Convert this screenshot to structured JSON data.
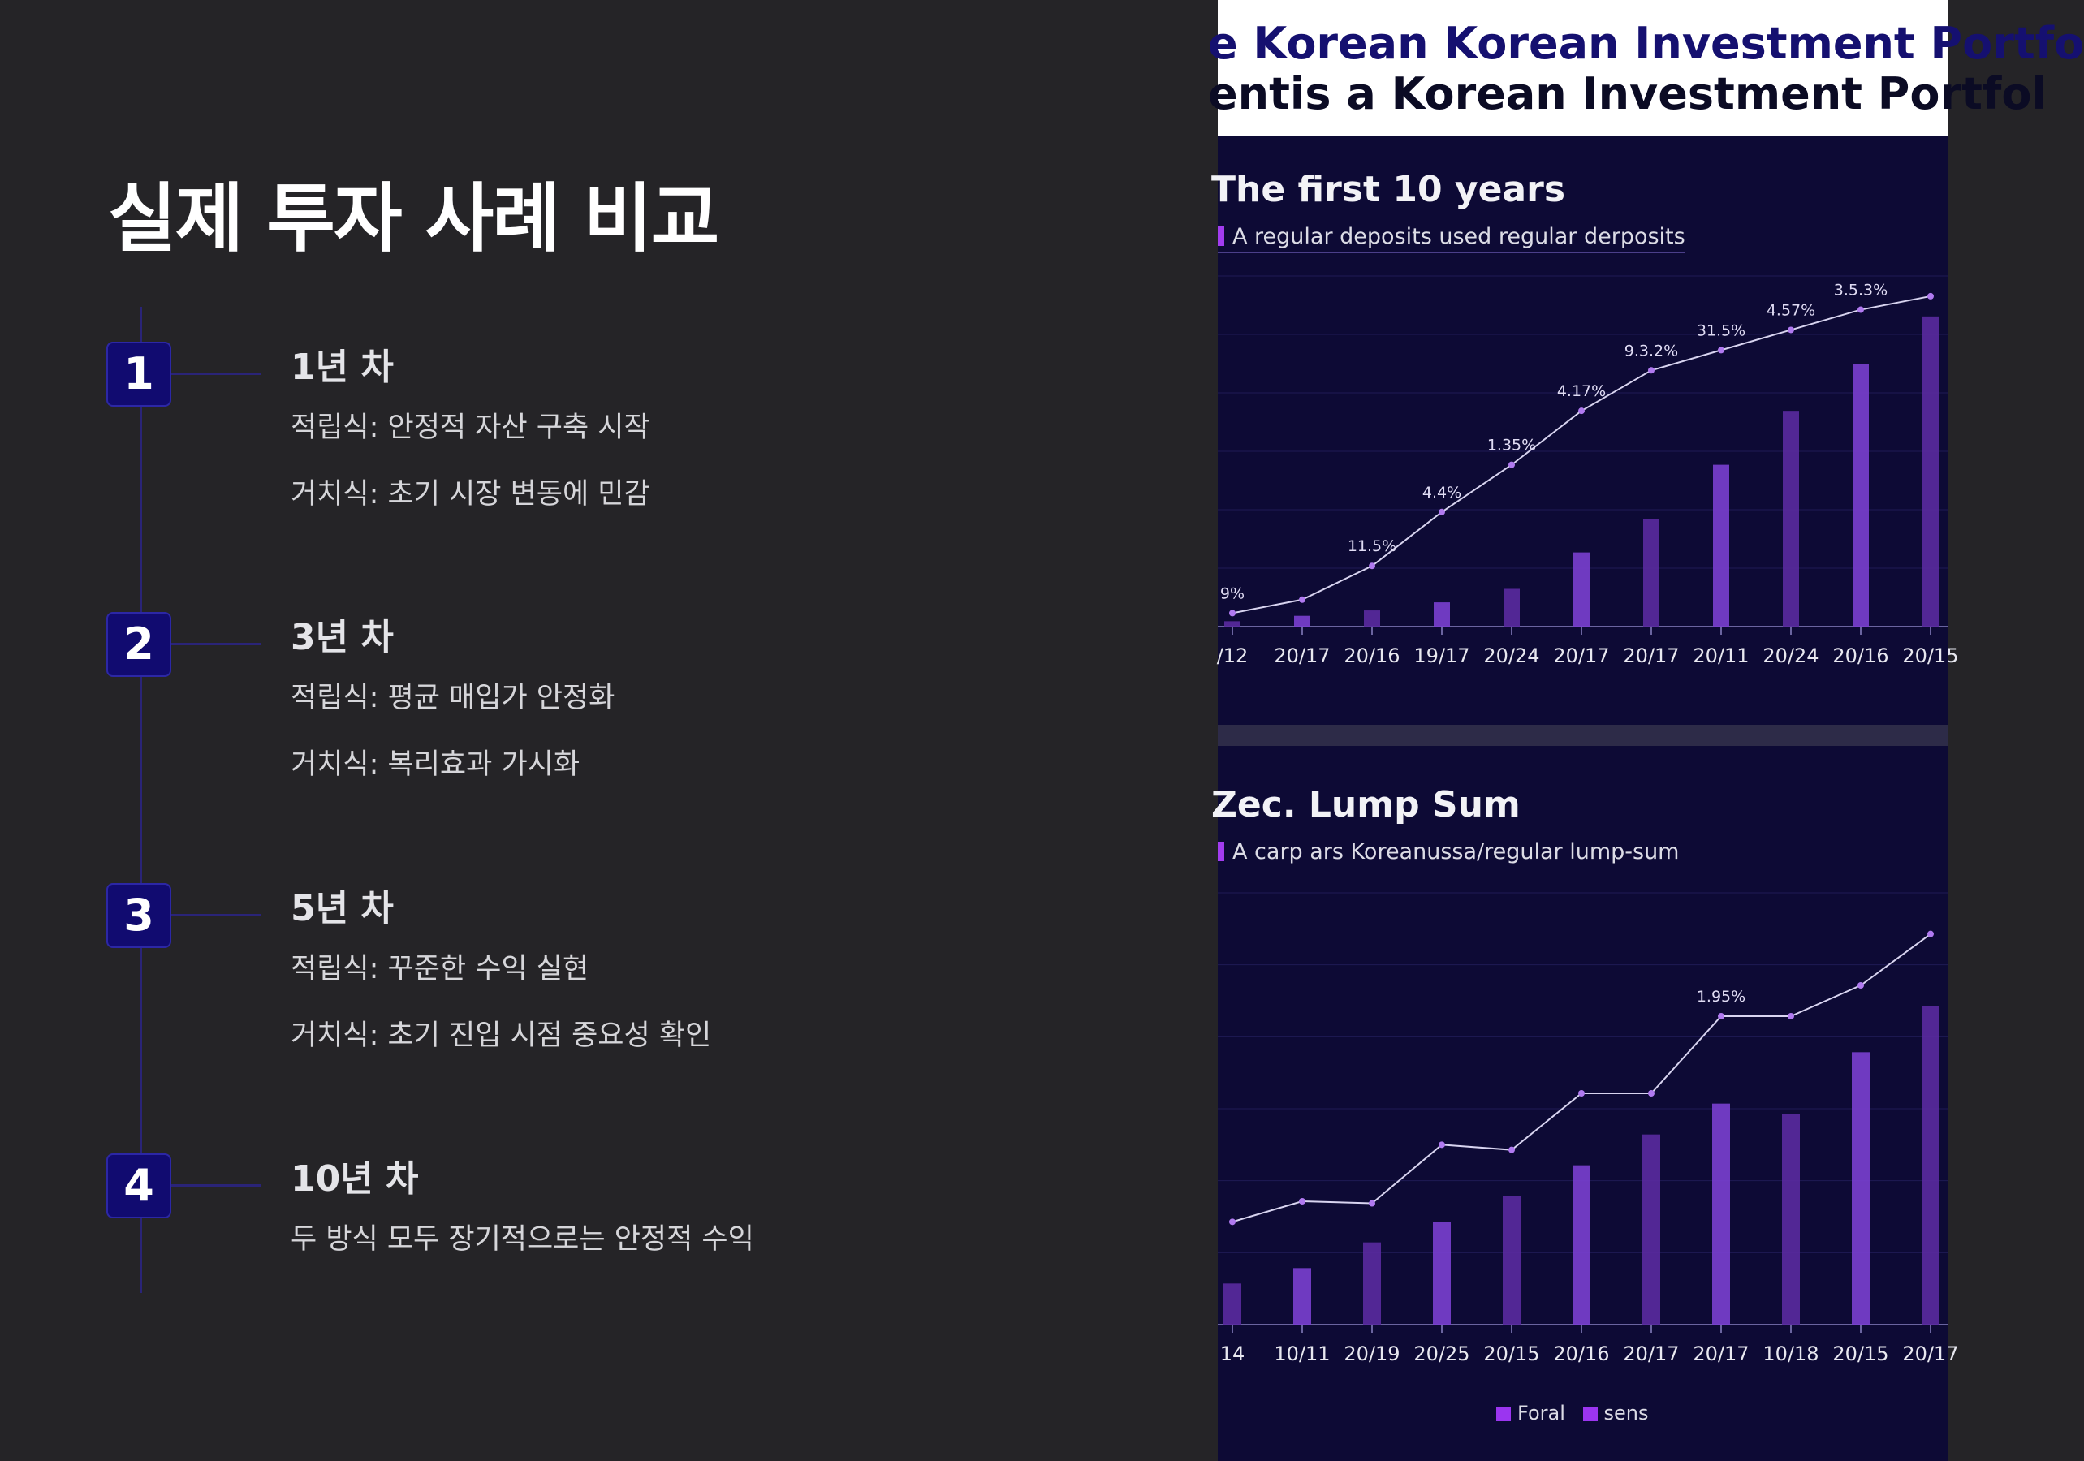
{
  "slide": {
    "title": "실제 투자 사례 비교",
    "steps": [
      {
        "number": "1",
        "title": "1년 차",
        "lines": [
          "적립식: 안정적 자산 구축 시작",
          "거치식: 초기 시장 변동에 민감"
        ]
      },
      {
        "number": "2",
        "title": "3년 차",
        "lines": [
          "적립식: 평균 매입가 안정화",
          "거치식: 복리효과 가시화"
        ]
      },
      {
        "number": "3",
        "title": "5년 차",
        "lines": [
          "적립식: 꾸준한 수익 실현",
          "거치식: 초기 진입 시점 중요성 확인"
        ]
      },
      {
        "number": "4",
        "title": "10년 차",
        "lines": [
          "두 방식 모두 장기적으로는 안정적 수익"
        ]
      }
    ]
  },
  "image": {
    "header_line1": "e Korean Korean Investment Portfo",
    "header_line2": "entis a Korean Investment Portfol",
    "legend": [
      "Foral",
      "sens"
    ],
    "colors": {
      "bar": "#5a2aa0",
      "bar_light": "#7a3fd0",
      "line": "#d8d4f0",
      "marker": "#b07af0",
      "bg": "#0d0a35"
    }
  },
  "chart_data": [
    {
      "type": "bar",
      "title": "The first 10 years",
      "subtitle": "A regular deposits used regular derposits",
      "categories": [
        "/12",
        "20/17",
        "20/16",
        "19/17",
        "20/24",
        "20/17",
        "20/17",
        "20/11",
        "20/24",
        "20/16",
        "20/15"
      ],
      "values": [
        4,
        8,
        12,
        18,
        28,
        55,
        80,
        120,
        160,
        195,
        230
      ],
      "line_values": [
        10,
        20,
        45,
        85,
        120,
        160,
        190,
        205,
        220,
        235,
        245
      ],
      "line_labels": [
        "9%",
        "11.5%",
        "4.4%",
        "1.35%",
        "4.17%",
        "9.3.2%",
        "31.5%",
        "4.57%",
        "3.5.3%"
      ]
    },
    {
      "type": "bar",
      "title": "Zec. Lump Sum",
      "subtitle": "A carp ars Koreanussa/regular lump-sum",
      "categories": [
        "14",
        "10/11",
        "20/19",
        "20/25",
        "20/15",
        "20/16",
        "20/17",
        "20/17",
        "10/18",
        "20/15",
        "20/17"
      ],
      "values": [
        40,
        55,
        80,
        100,
        125,
        155,
        185,
        215,
        205,
        265,
        310
      ],
      "line_values": [
        100,
        120,
        118,
        175,
        170,
        225,
        225,
        300,
        300,
        330,
        380
      ],
      "line_labels": [
        "1.95%"
      ]
    }
  ]
}
